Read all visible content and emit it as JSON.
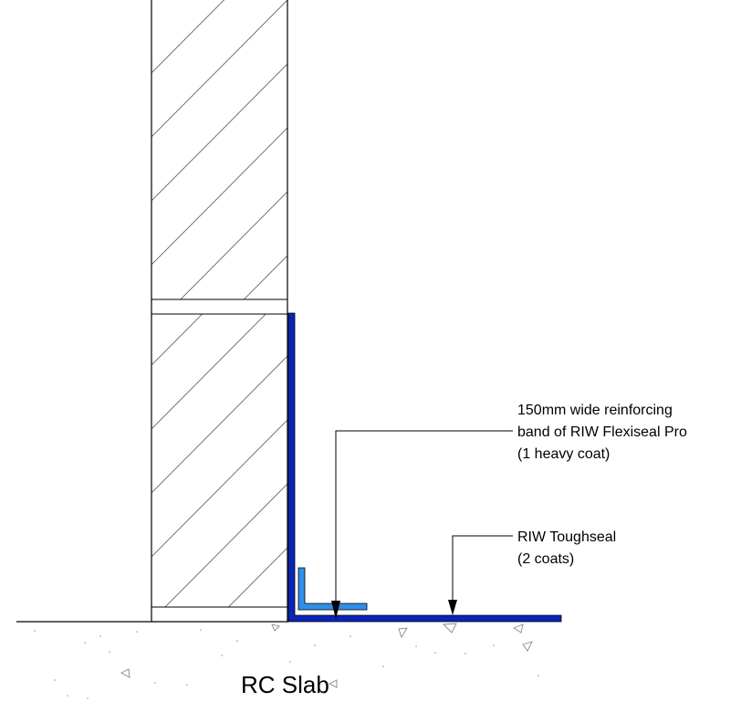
{
  "annotations": {
    "reinforcing_band": {
      "line1": "150mm wide reinforcing",
      "line2": "band of RIW Flexiseal Pro",
      "line3": "(1 heavy coat)"
    },
    "toughseal": {
      "line1": "RIW Toughseal",
      "line2": "(2 coats)"
    }
  },
  "slab_label": "RC Slab",
  "colors": {
    "membrane": "#0a24b8",
    "reinforcing_band": "#2f8fe8",
    "linework": "#000000",
    "hatch": "#555555",
    "concrete_marks": "#888888"
  }
}
